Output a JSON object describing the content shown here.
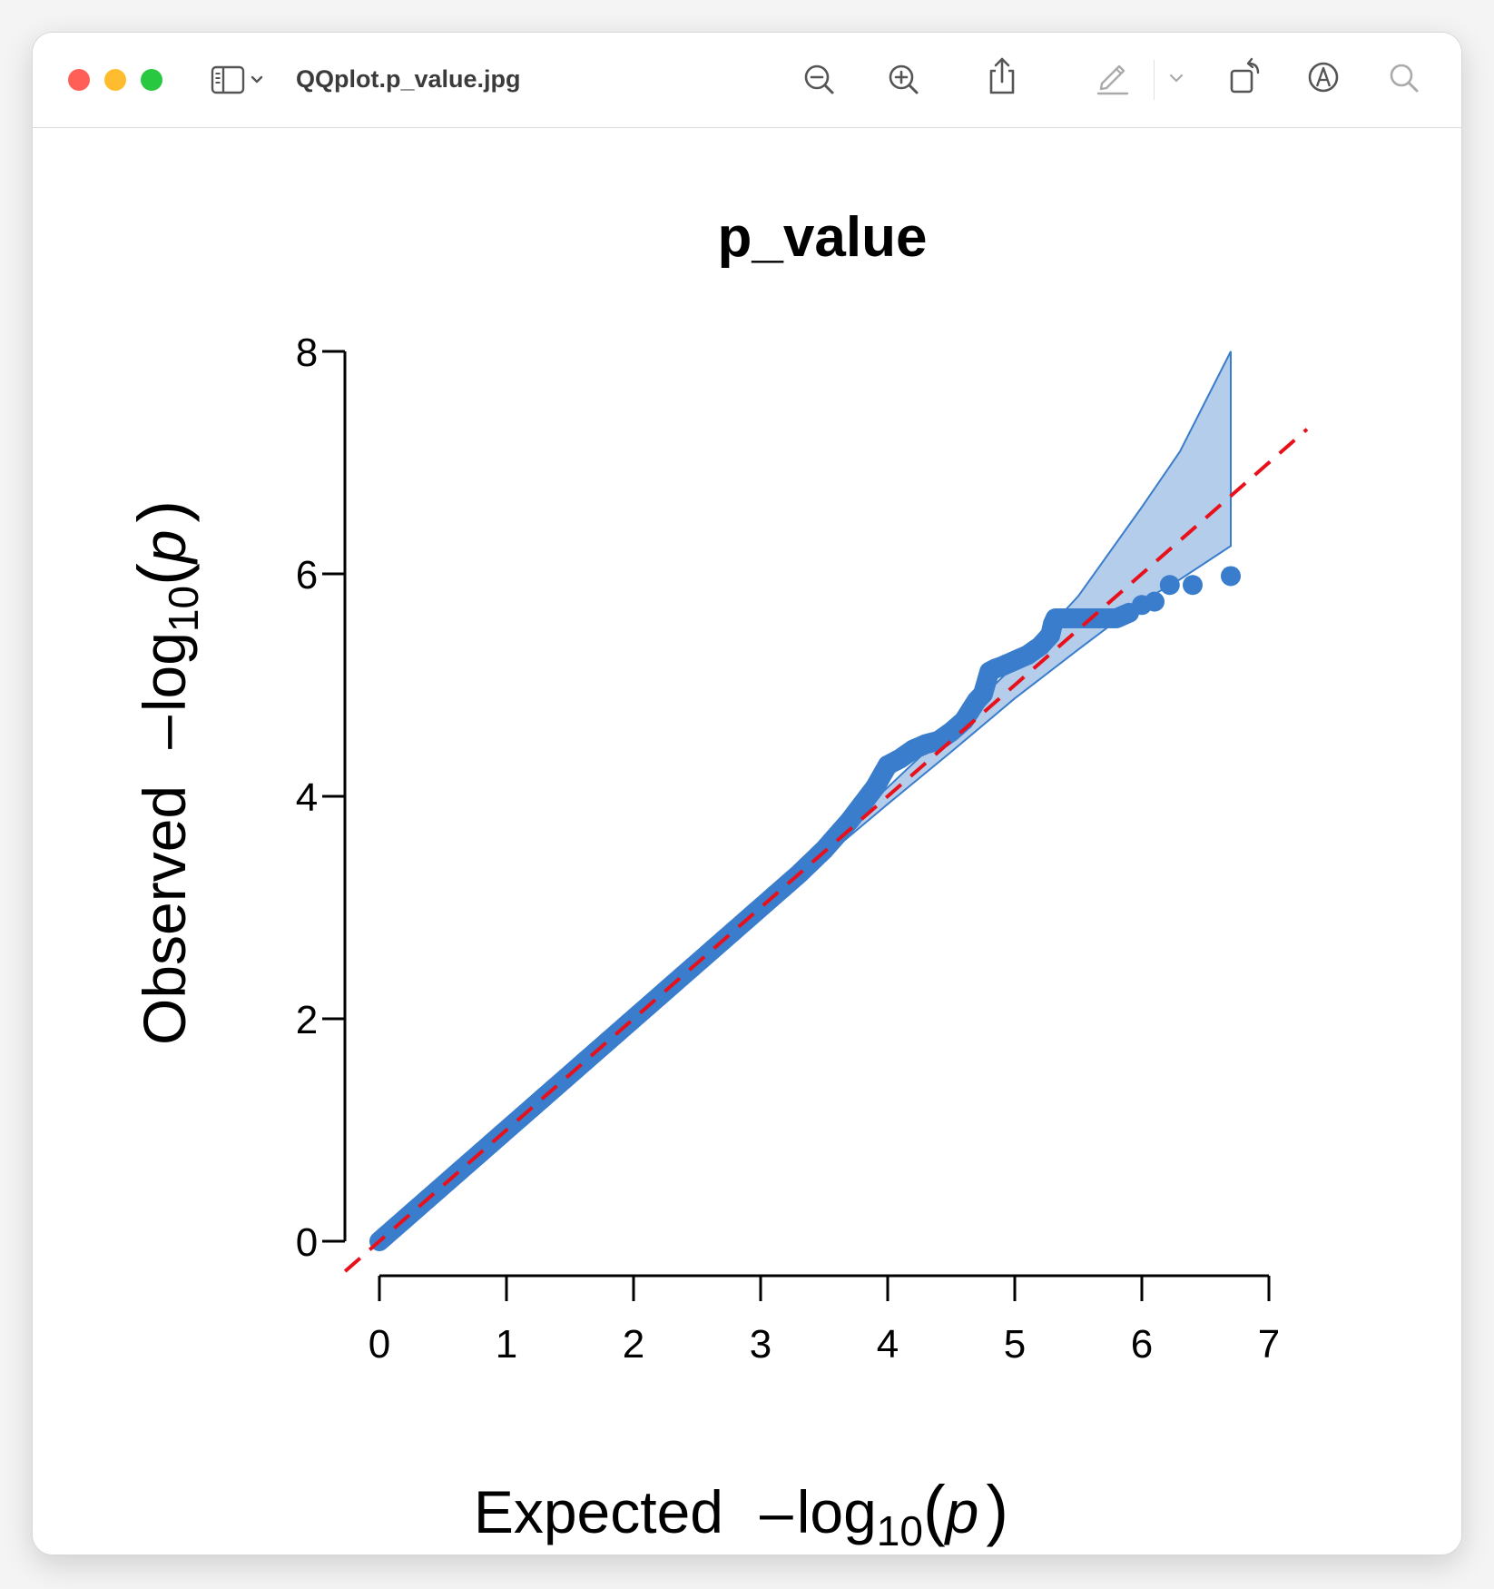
{
  "window": {
    "title": "QQplot.p_value.jpg"
  },
  "toolbar": {
    "icons": [
      "sidebar-icon",
      "chevron-down-icon",
      "zoom-out-icon",
      "zoom-in-icon",
      "share-icon",
      "markup-pencil-icon",
      "chevron-down-icon",
      "rotate-icon",
      "annotate-icon",
      "search-icon"
    ]
  },
  "chart_data": {
    "type": "scatter",
    "title": "p_value",
    "xlabel": {
      "main": "Expected",
      "minus": "–",
      "log": "log",
      "sub": "10",
      "open": "(",
      "p": "p",
      "close": ")"
    },
    "ylabel": {
      "main": "Observed",
      "minus": "–",
      "log": "log",
      "sub": "10",
      "open": "(",
      "p": "p",
      "close": ")"
    },
    "xlim": [
      0,
      7
    ],
    "ylim": [
      0,
      8
    ],
    "xticks": [
      "0",
      "1",
      "2",
      "3",
      "4",
      "5",
      "6",
      "7"
    ],
    "yticks": [
      "0",
      "2",
      "4",
      "6",
      "8"
    ],
    "point_color": "#3a7dcc",
    "band_fill": "#b3cdea",
    "band_stroke": "#3a7dcc",
    "reference_line": {
      "color": "#e8101a",
      "style": "dashed",
      "slope": 1,
      "intercept": 0
    },
    "confidence_band": {
      "x": [
        3.5,
        4.0,
        4.5,
        5.0,
        5.5,
        6.0,
        6.3,
        6.5,
        6.7
      ],
      "upper": [
        3.55,
        4.08,
        4.62,
        5.18,
        5.8,
        6.6,
        7.1,
        7.55,
        8.0
      ],
      "lower": [
        3.45,
        3.93,
        4.4,
        4.88,
        5.32,
        5.75,
        5.95,
        6.1,
        6.25
      ]
    },
    "points": {
      "x": [
        0.0,
        0.5,
        1.0,
        1.5,
        2.0,
        2.5,
        3.0,
        3.3,
        3.5,
        3.7,
        3.8,
        3.9,
        4.0,
        4.1,
        4.2,
        4.3,
        4.4,
        4.5,
        4.6,
        4.7,
        4.75,
        4.8,
        4.85,
        4.9,
        5.0,
        5.1,
        5.2,
        5.28,
        5.3,
        5.32,
        5.4,
        5.5,
        5.6,
        5.7,
        5.8,
        5.9,
        6.0,
        6.1,
        6.22,
        6.4,
        6.7
      ],
      "y": [
        0.0,
        0.5,
        1.0,
        1.5,
        2.0,
        2.5,
        3.0,
        3.3,
        3.52,
        3.78,
        3.93,
        4.08,
        4.28,
        4.34,
        4.42,
        4.47,
        4.5,
        4.58,
        4.68,
        4.86,
        4.92,
        5.12,
        5.15,
        5.17,
        5.22,
        5.27,
        5.35,
        5.45,
        5.55,
        5.6,
        5.6,
        5.6,
        5.6,
        5.6,
        5.6,
        5.65,
        5.72,
        5.75,
        5.9,
        5.9,
        5.98
      ]
    }
  }
}
